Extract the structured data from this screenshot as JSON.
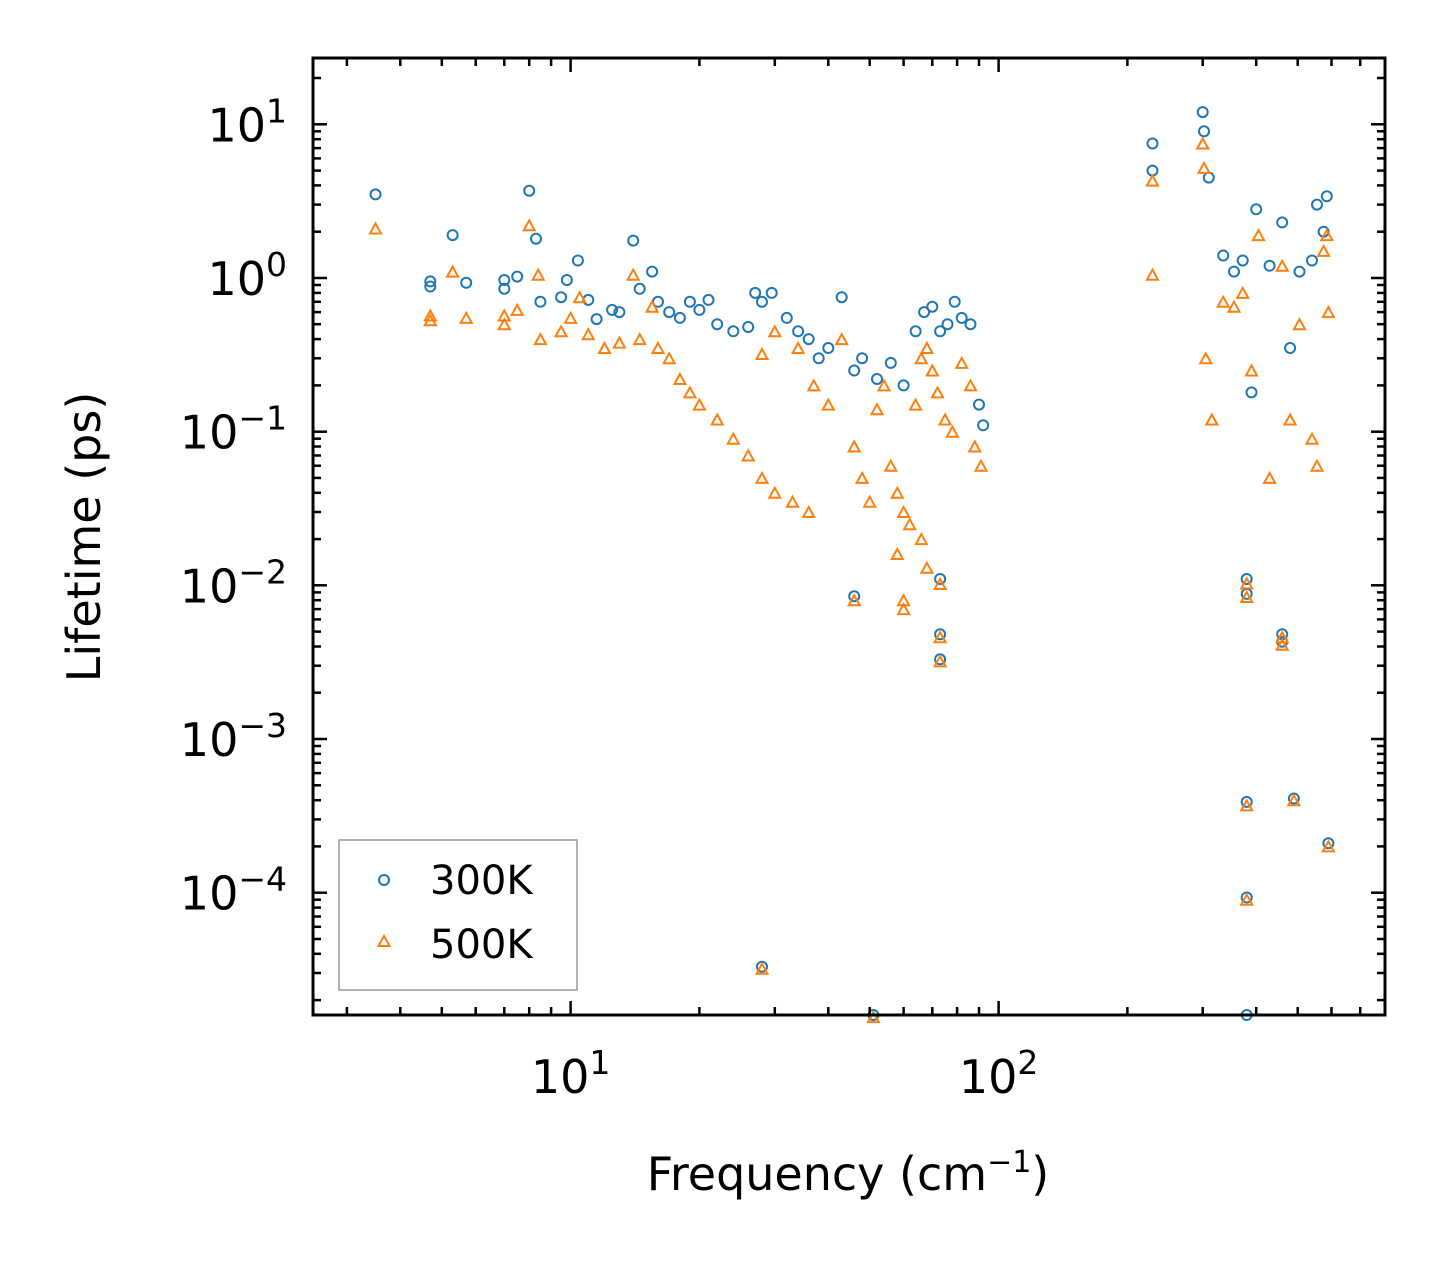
{
  "chart_data": {
    "type": "scatter",
    "title": "",
    "xlabel": "Frequency (cm",
    "xlabel_sup": "−1",
    "xlabel_tail": ")",
    "ylabel": "Lifetime (ps)",
    "xscale": "log",
    "yscale": "log",
    "xlim": [
      2.5,
      800
    ],
    "ylim": [
      1.6e-05,
      27
    ],
    "legend_position": "lower-left",
    "x_ticks": [
      {
        "value": 10,
        "base": "10",
        "exp": "1"
      },
      {
        "value": 100,
        "base": "10",
        "exp": "2"
      }
    ],
    "y_ticks": [
      {
        "value": 10,
        "base": "10",
        "exp": "1"
      },
      {
        "value": 1,
        "base": "10",
        "exp": "0"
      },
      {
        "value": 0.1,
        "base": "10",
        "exp": "−1"
      },
      {
        "value": 0.01,
        "base": "10",
        "exp": "−2"
      },
      {
        "value": 0.001,
        "base": "10",
        "exp": "−3"
      },
      {
        "value": 0.0001,
        "base": "10",
        "exp": "−4"
      }
    ],
    "series": [
      {
        "name": "300K",
        "marker": "circle",
        "color": "#1f77b4",
        "points": [
          [
            3.5,
            3.5
          ],
          [
            4.7,
            0.95
          ],
          [
            4.7,
            0.88
          ],
          [
            5.3,
            1.9
          ],
          [
            5.7,
            0.93
          ],
          [
            7.0,
            0.97
          ],
          [
            7.0,
            0.85
          ],
          [
            7.5,
            1.02
          ],
          [
            8.0,
            3.7
          ],
          [
            8.3,
            1.8
          ],
          [
            8.5,
            0.7
          ],
          [
            9.5,
            0.75
          ],
          [
            9.8,
            0.97
          ],
          [
            10.4,
            1.3
          ],
          [
            11.0,
            0.72
          ],
          [
            11.5,
            0.54
          ],
          [
            12.5,
            0.62
          ],
          [
            13.0,
            0.6
          ],
          [
            14.0,
            1.75
          ],
          [
            14.5,
            0.85
          ],
          [
            15.5,
            1.1
          ],
          [
            16.0,
            0.7
          ],
          [
            17.0,
            0.6
          ],
          [
            18.0,
            0.55
          ],
          [
            19.0,
            0.7
          ],
          [
            20.0,
            0.62
          ],
          [
            21.0,
            0.72
          ],
          [
            22.0,
            0.5
          ],
          [
            24.0,
            0.45
          ],
          [
            26.0,
            0.48
          ],
          [
            27.0,
            0.8
          ],
          [
            28.0,
            0.7
          ],
          [
            29.5,
            0.8
          ],
          [
            32.0,
            0.55
          ],
          [
            34.0,
            0.45
          ],
          [
            36.0,
            0.4
          ],
          [
            38.0,
            0.3
          ],
          [
            40.0,
            0.35
          ],
          [
            43.0,
            0.75
          ],
          [
            46.0,
            0.25
          ],
          [
            48.0,
            0.3
          ],
          [
            52.0,
            0.22
          ],
          [
            56.0,
            0.28
          ],
          [
            60.0,
            0.2
          ],
          [
            64.0,
            0.45
          ],
          [
            67.0,
            0.6
          ],
          [
            70.0,
            0.65
          ],
          [
            73.0,
            0.45
          ],
          [
            76.0,
            0.5
          ],
          [
            79.0,
            0.7
          ],
          [
            82.0,
            0.55
          ],
          [
            86.0,
            0.5
          ],
          [
            90.0,
            0.15
          ],
          [
            92.0,
            0.11
          ],
          [
            46.0,
            0.0085
          ],
          [
            28.0,
            3.3e-05
          ],
          [
            51.0,
            1.6e-05
          ],
          [
            73.0,
            0.011
          ],
          [
            73.0,
            0.0048
          ],
          [
            73.0,
            0.0033
          ],
          [
            229.0,
            7.5
          ],
          [
            229.0,
            5.0
          ],
          [
            300.0,
            12.0
          ],
          [
            302.0,
            9.0
          ],
          [
            310.0,
            4.5
          ],
          [
            335.0,
            1.4
          ],
          [
            355.0,
            1.1
          ],
          [
            372.0,
            1.3
          ],
          [
            390.0,
            0.18
          ],
          [
            400.0,
            2.8
          ],
          [
            430.0,
            1.2
          ],
          [
            460.0,
            2.3
          ],
          [
            480.0,
            0.35
          ],
          [
            505.0,
            1.1
          ],
          [
            540.0,
            1.3
          ],
          [
            555.0,
            3.0
          ],
          [
            575.0,
            2.0
          ],
          [
            585.0,
            3.4
          ],
          [
            380.0,
            0.011
          ],
          [
            380.0,
            0.0088
          ],
          [
            460.0,
            0.0048
          ],
          [
            460.0,
            0.0043
          ],
          [
            380.0,
            0.00039
          ],
          [
            490.0,
            0.00041
          ],
          [
            380.0,
            9.3e-05
          ],
          [
            590.0,
            0.00021
          ],
          [
            380.0,
            1.6e-05
          ]
        ]
      },
      {
        "name": "500K",
        "marker": "triangle",
        "color": "#ff7f0e",
        "points": [
          [
            3.5,
            2.1
          ],
          [
            4.7,
            0.57
          ],
          [
            4.7,
            0.53
          ],
          [
            5.3,
            1.1
          ],
          [
            5.7,
            0.55
          ],
          [
            7.0,
            0.57
          ],
          [
            7.0,
            0.5
          ],
          [
            7.5,
            0.62
          ],
          [
            8.0,
            2.2
          ],
          [
            8.4,
            1.05
          ],
          [
            8.5,
            0.4
          ],
          [
            9.5,
            0.45
          ],
          [
            10.0,
            0.55
          ],
          [
            10.5,
            0.75
          ],
          [
            11.0,
            0.43
          ],
          [
            12.0,
            0.35
          ],
          [
            13.0,
            0.38
          ],
          [
            14.0,
            1.05
          ],
          [
            14.5,
            0.4
          ],
          [
            15.5,
            0.65
          ],
          [
            16.0,
            0.35
          ],
          [
            17.0,
            0.3
          ],
          [
            18.0,
            0.22
          ],
          [
            19.0,
            0.18
          ],
          [
            20.0,
            0.15
          ],
          [
            22.0,
            0.12
          ],
          [
            24.0,
            0.09
          ],
          [
            26.0,
            0.07
          ],
          [
            28.0,
            0.05
          ],
          [
            30.0,
            0.04
          ],
          [
            33.0,
            0.035
          ],
          [
            36.0,
            0.03
          ],
          [
            28.0,
            0.32
          ],
          [
            30.0,
            0.45
          ],
          [
            34.0,
            0.35
          ],
          [
            37.0,
            0.2
          ],
          [
            40.0,
            0.15
          ],
          [
            43.0,
            0.4
          ],
          [
            46.0,
            0.08
          ],
          [
            48.0,
            0.05
          ],
          [
            50.0,
            0.035
          ],
          [
            52.0,
            0.14
          ],
          [
            54.0,
            0.2
          ],
          [
            56.0,
            0.06
          ],
          [
            58.0,
            0.04
          ],
          [
            60.0,
            0.03
          ],
          [
            62.0,
            0.025
          ],
          [
            64.0,
            0.15
          ],
          [
            66.0,
            0.3
          ],
          [
            68.0,
            0.35
          ],
          [
            70.0,
            0.25
          ],
          [
            72.0,
            0.18
          ],
          [
            75.0,
            0.12
          ],
          [
            78.0,
            0.1
          ],
          [
            82.0,
            0.28
          ],
          [
            86.0,
            0.2
          ],
          [
            88.0,
            0.08
          ],
          [
            91.0,
            0.06
          ],
          [
            58.0,
            0.016
          ],
          [
            60.0,
            0.008
          ],
          [
            60.0,
            0.007
          ],
          [
            66.0,
            0.02
          ],
          [
            68.0,
            0.013
          ],
          [
            46.0,
            0.008
          ],
          [
            28.0,
            3.2e-05
          ],
          [
            51.0,
            1.55e-05
          ],
          [
            73.0,
            0.0102
          ],
          [
            73.0,
            0.0046
          ],
          [
            73.0,
            0.0032
          ],
          [
            229.0,
            4.3
          ],
          [
            229.0,
            1.05
          ],
          [
            300.0,
            7.5
          ],
          [
            302.0,
            5.2
          ],
          [
            305.0,
            0.3
          ],
          [
            315.0,
            0.12
          ],
          [
            335.0,
            0.7
          ],
          [
            355.0,
            0.65
          ],
          [
            372.0,
            0.8
          ],
          [
            390.0,
            0.25
          ],
          [
            405.0,
            1.9
          ],
          [
            430.0,
            0.05
          ],
          [
            460.0,
            1.2
          ],
          [
            480.0,
            0.12
          ],
          [
            505.0,
            0.5
          ],
          [
            540.0,
            0.09
          ],
          [
            555.0,
            0.06
          ],
          [
            575.0,
            1.5
          ],
          [
            585.0,
            1.9
          ],
          [
            590.0,
            0.6
          ],
          [
            380.0,
            0.0103
          ],
          [
            380.0,
            0.0084
          ],
          [
            460.0,
            0.0046
          ],
          [
            460.0,
            0.0041
          ],
          [
            380.0,
            0.00037
          ],
          [
            490.0,
            0.0004
          ],
          [
            380.0,
            9e-05
          ],
          [
            590.0,
            0.0002
          ]
        ]
      }
    ]
  }
}
